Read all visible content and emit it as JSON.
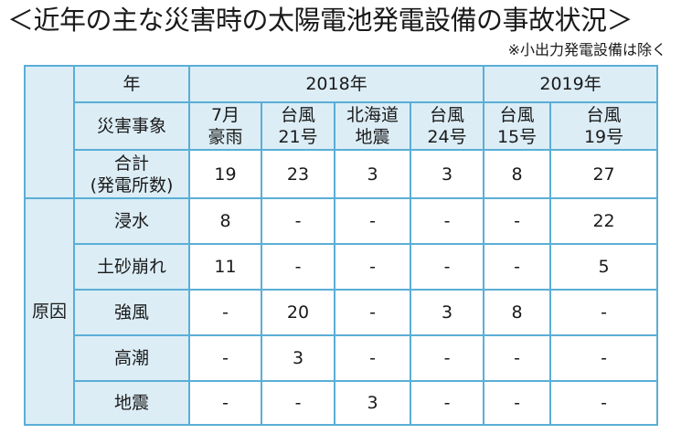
{
  "title": "＜近年の主な災害時の太陽電池発電設備の事故状況＞",
  "note": "※小出力発電設備は除く",
  "table": {
    "year_label": "年",
    "years": [
      "2018年",
      "2019年"
    ],
    "event_label": "災害事象",
    "events": [
      {
        "line1": "7月",
        "line2": "豪雨"
      },
      {
        "line1": "台風",
        "line2": "21号"
      },
      {
        "line1": "北海道",
        "line2": "地震"
      },
      {
        "line1": "台風",
        "line2": "24号"
      },
      {
        "line1": "台風",
        "line2": "15号"
      },
      {
        "line1": "台風",
        "line2": "19号"
      }
    ],
    "total_label_line1": "合計",
    "total_label_line2": "(発電所数)",
    "totals": [
      "19",
      "23",
      "3",
      "3",
      "8",
      "27"
    ],
    "cause_label": "原因",
    "causes": [
      {
        "label": "浸水",
        "values": [
          "8",
          "-",
          "-",
          "-",
          "-",
          "22"
        ]
      },
      {
        "label": "土砂崩れ",
        "values": [
          "11",
          "-",
          "-",
          "-",
          "-",
          "5"
        ]
      },
      {
        "label": "強風",
        "values": [
          "-",
          "20",
          "-",
          "3",
          "8",
          "-"
        ]
      },
      {
        "label": "高潮",
        "values": [
          "-",
          "3",
          "-",
          "-",
          "-",
          "-"
        ]
      },
      {
        "label": "地震",
        "values": [
          "-",
          "-",
          "3",
          "-",
          "-",
          "-"
        ]
      }
    ]
  }
}
